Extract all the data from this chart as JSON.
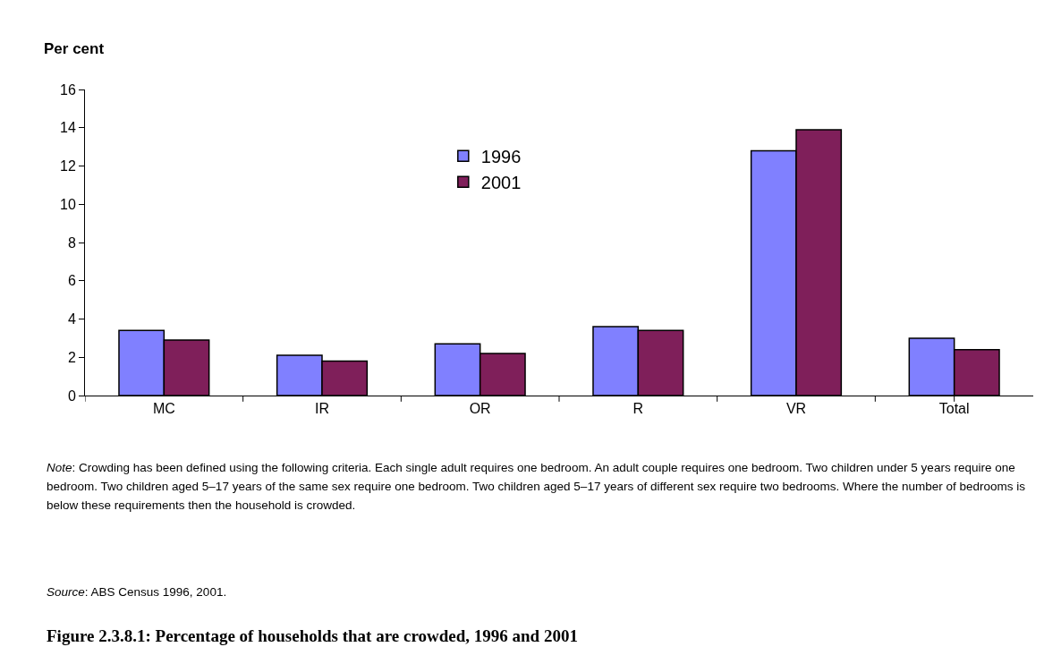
{
  "chart_data": {
    "type": "bar",
    "title": "Figure 2.3.8.1: Percentage of households that are crowded, 1996 and 2001",
    "ylabel": "Per cent",
    "categories": [
      "MC",
      "IR",
      "OR",
      "R",
      "VR",
      "Total"
    ],
    "series": [
      {
        "name": "1996",
        "color": "#8080ff",
        "values": [
          3.4,
          2.1,
          2.7,
          3.6,
          12.8,
          3.0
        ]
      },
      {
        "name": "2001",
        "color": "#7f1f5a",
        "values": [
          2.9,
          1.8,
          2.2,
          3.4,
          13.9,
          2.4
        ]
      }
    ],
    "ylim": [
      0,
      16
    ],
    "yticks": [
      0,
      2,
      4,
      6,
      8,
      10,
      12,
      14,
      16
    ],
    "grid": false,
    "legend": "top",
    "annotations": [
      "Note: Crowding has been defined using the following criteria. Each single adult requires one bedroom. An adult couple requires one bedroom. Two children under 5 years require one bedroom. Two children aged 5–17 years of the same sex require one bedroom. Two children aged 5–17 years of different sex require two bedrooms. Where the number of bedrooms is below these requirements then the household is crowded.",
      "Source: ABS Census 1996, 2001."
    ]
  }
}
